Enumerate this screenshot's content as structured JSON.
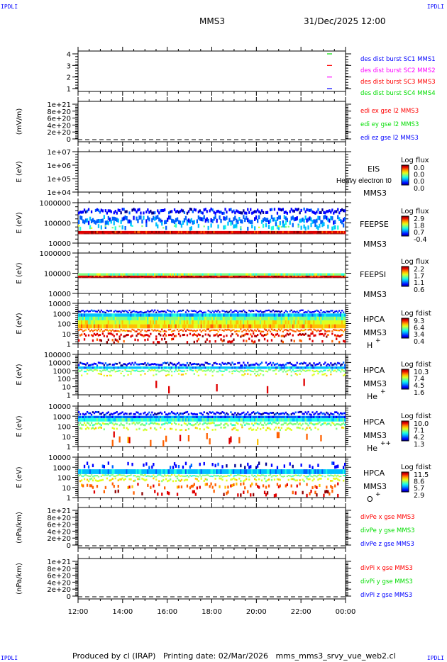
{
  "corners": {
    "tl": "IPDLI",
    "tr": "IPDLI",
    "bl": "IPDLI",
    "br": "IPDLI"
  },
  "header": {
    "spacecraft": "MMS3",
    "datetime": "31/Dec/2025 12:00"
  },
  "footer": {
    "produced": "Produced by cl (IRAP)",
    "printing_date": "Printing date: 02/Mar/2026",
    "script": "mms_mms3_srvy_vue_web2.cl"
  },
  "chart_data": {
    "type": "multi-panel time series / spectrogram",
    "x_tick_labels": [
      "12:00",
      "14:00",
      "16:00",
      "18:00",
      "20:00",
      "22:00",
      "00:00"
    ],
    "xlim": [
      "31/Dec/2025 12:00",
      "01/Jan/2026 00:00"
    ],
    "panels": [
      {
        "id": "burst",
        "ylabel": "",
        "yticks": [
          "4",
          "3",
          "2",
          "1"
        ],
        "legend": [
          {
            "text": "des dist burst SC1 MMS1",
            "color": "#0000ff"
          },
          {
            "text": "des dist burst SC2 MMS2",
            "color": "#ff00ff"
          },
          {
            "text": "des dist burst SC3 MMS3",
            "color": "#ff0000"
          },
          {
            "text": "des dist burst SC4 MMS4",
            "color": "#00dd00"
          }
        ],
        "markers": [
          {
            "y": 4,
            "color": "#00dd00"
          },
          {
            "y": 3,
            "color": "#ff0000"
          },
          {
            "y": 2,
            "color": "#ff00ff"
          },
          {
            "y": 1,
            "color": "#0000ff"
          }
        ]
      },
      {
        "id": "edi",
        "ylabel": "(mV/m)",
        "yticks": [
          "1e+21",
          "8e+20",
          "6e+20",
          "4e+20",
          "2e+20",
          "0"
        ],
        "zero_line": true,
        "legend": [
          {
            "text": "edi ex gse l2 MMS3",
            "color": "#ff0000"
          },
          {
            "text": "edi ey gse l2 MMS3",
            "color": "#00dd00"
          },
          {
            "text": "edi ez gse l2 MMS3",
            "color": "#0000ff"
          }
        ]
      },
      {
        "id": "eis",
        "ylabel": "E (eV)",
        "yticks": [
          "1e+07",
          "1e+06",
          "1e+05",
          "1e+04"
        ],
        "labels": [
          "EIS",
          "Heavy electron t0",
          "MMS3"
        ],
        "colorbar": {
          "title": "Log flux",
          "ticks": [
            "0.0",
            "0.0",
            "0.0",
            "0.0"
          ]
        }
      },
      {
        "id": "feepse",
        "ylabel": "E (eV)",
        "yticks": [
          "1000000",
          "100000",
          "10000"
        ],
        "labels": [
          "FEEPSE",
          "MMS3"
        ],
        "colorbar": {
          "title": "Log flux",
          "ticks": [
            "2.9",
            "1.8",
            "0.7",
            "-0.4"
          ]
        }
      },
      {
        "id": "feepsi",
        "ylabel": "E (eV)",
        "yticks": [
          "1000000",
          "100000",
          "10000"
        ],
        "labels": [
          "FEEPSI",
          "MMS3"
        ],
        "colorbar": {
          "title": "Log flux",
          "ticks": [
            "2.2",
            "1.7",
            "1.1",
            "0.6"
          ]
        }
      },
      {
        "id": "hpca_h",
        "ylabel": "E (eV)",
        "yticks": [
          "10000",
          "1000",
          "100",
          "10",
          "1"
        ],
        "labels": [
          "HPCA",
          "MMS3"
        ],
        "species": "H",
        "charge": "+",
        "colorbar": {
          "title": "Log fdist",
          "ticks": [
            "9.3",
            "6.4",
            "3.4",
            "0.4"
          ]
        }
      },
      {
        "id": "hpca_he1",
        "ylabel": "E (eV)",
        "yticks": [
          "100000",
          "10000",
          "1000",
          "100",
          "10",
          "1"
        ],
        "labels": [
          "HPCA",
          "MMS3"
        ],
        "species": "He",
        "charge": "+",
        "colorbar": {
          "title": "Log fdist",
          "ticks": [
            "10.3",
            "7.4",
            "4.5",
            "1.6"
          ]
        }
      },
      {
        "id": "hpca_he2",
        "ylabel": "E (eV)",
        "yticks": [
          "10000",
          "1000",
          "100",
          "10",
          "1"
        ],
        "labels": [
          "HPCA",
          "MMS3"
        ],
        "species": "He",
        "charge": "++",
        "colorbar": {
          "title": "Log fdist",
          "ticks": [
            "10.0",
            "7.1",
            "4.2",
            "1.3"
          ]
        }
      },
      {
        "id": "hpca_o",
        "ylabel": "E (eV)",
        "yticks": [
          "10000",
          "1000",
          "100",
          "10",
          "1"
        ],
        "labels": [
          "HPCA",
          "MMS3"
        ],
        "species": "O",
        "charge": "+",
        "colorbar": {
          "title": "Log fdist",
          "ticks": [
            "11.5",
            "8.6",
            "5.7",
            "2.9"
          ]
        }
      },
      {
        "id": "divpe",
        "ylabel": "(nPa/km)",
        "yticks": [
          "1e+21",
          "8e+20",
          "6e+20",
          "4e+20",
          "2e+20",
          "0"
        ],
        "zero_line": true,
        "legend": [
          {
            "text": "divPe x gse MMS3",
            "color": "#ff0000"
          },
          {
            "text": "divPe y gse MMS3",
            "color": "#00dd00"
          },
          {
            "text": "divPe z gse MMS3",
            "color": "#0000ff"
          }
        ]
      },
      {
        "id": "divpi",
        "ylabel": "(nPa/km)",
        "yticks": [
          "1e+21",
          "8e+20",
          "6e+20",
          "4e+20",
          "2e+20",
          "0"
        ],
        "zero_line": true,
        "legend": [
          {
            "text": "divPi x gse MMS3",
            "color": "#ff0000"
          },
          {
            "text": "divPi y gse MMS3",
            "color": "#00dd00"
          },
          {
            "text": "divPi z gse MMS3",
            "color": "#0000ff"
          }
        ]
      }
    ]
  }
}
